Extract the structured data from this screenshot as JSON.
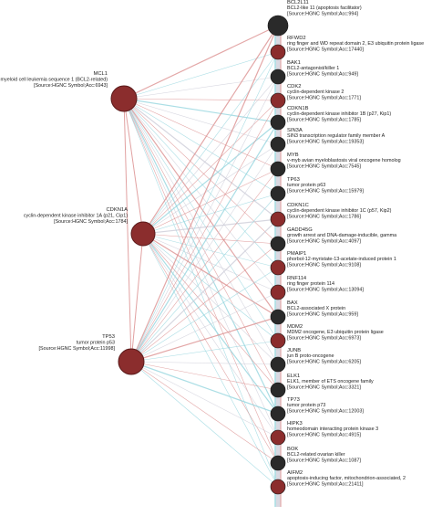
{
  "colors": {
    "red_node": "#8b2d2d",
    "dark_node": "#2a2a2a",
    "edge_red": "#d98a8a",
    "edge_blue": "#8fd3dc",
    "edge_gray": "#c9c9d6"
  },
  "hubs": [
    {
      "id": "mcl1",
      "lines": [
        "MCL1",
        "myeloid cell leukemia sequence 1 (BCL2-related)",
        "[Source:HGNC Symbol;Acc:6943]"
      ]
    },
    {
      "id": "cdkn1a",
      "lines": [
        "CDKN1A",
        "cyclin-dependent kinase inhibitor 1A (p21, Cip1)",
        "[Source:HGNC Symbol;Acc:1784]"
      ]
    },
    {
      "id": "tp53",
      "lines": [
        "TP53",
        "tumor protein p53",
        "[Source:HGNC Symbol;Acc:11998]"
      ]
    }
  ],
  "genes": [
    {
      "id": "bcl2l11",
      "color": "dark",
      "lines": [
        "BCL2L11",
        "BCL2-like 11 (apoptosis facilitator)",
        "[Source:HGNC Symbol;Acc:994]"
      ]
    },
    {
      "id": "rfwd2",
      "color": "red",
      "lines": [
        "RFWD2",
        "ring finger and WD repeat domain 2, E3 ubiquitin protein ligase",
        "[Source:HGNC Symbol;Acc:17440]"
      ]
    },
    {
      "id": "bak1",
      "color": "dark",
      "lines": [
        "BAK1",
        "BCL2-antagonist/killer 1",
        "[Source:HGNC Symbol;Acc:949]"
      ]
    },
    {
      "id": "cdk2",
      "color": "red",
      "lines": [
        "CDK2",
        "cyclin-dependent kinase 2",
        "[Source:HGNC Symbol;Acc:1771]"
      ]
    },
    {
      "id": "cdkn1b",
      "color": "dark",
      "lines": [
        "CDKN1B",
        "cyclin-dependent kinase inhibitor 1B (p27, Kip1)",
        "[Source:HGNC Symbol;Acc:1785]"
      ]
    },
    {
      "id": "sin3a",
      "color": "dark",
      "lines": [
        "SIN3A",
        "SIN3 transcription regulator family member A",
        "[Source:HGNC Symbol;Acc:19353]"
      ]
    },
    {
      "id": "myb",
      "color": "dark",
      "lines": [
        "MYB",
        "v-myb avian myeloblastosis viral oncogene homolog",
        "[Source:HGNC Symbol;Acc:7545]"
      ]
    },
    {
      "id": "tp63",
      "color": "dark",
      "lines": [
        "TP63",
        "tumor protein p63",
        "[Source:HGNC Symbol;Acc:15979]"
      ]
    },
    {
      "id": "cdkn1c",
      "color": "red",
      "lines": [
        "CDKN1C",
        "cyclin-dependent kinase inhibitor 1C (p57, Kip2)",
        "[Source:HGNC Symbol;Acc:1786]"
      ]
    },
    {
      "id": "gadd45g",
      "color": "dark",
      "lines": [
        "GADD45G",
        "growth arrest and DNA-damage-inducible, gamma",
        "[Source:HGNC Symbol;Acc:4097]"
      ]
    },
    {
      "id": "pmaip1",
      "color": "red",
      "lines": [
        "PMAIP1",
        "phorbol-12-myristate-13-acetate-induced protein 1",
        "[Source:HGNC Symbol;Acc:9108]"
      ]
    },
    {
      "id": "rnf114",
      "color": "red",
      "lines": [
        "RNF114",
        "ring finger protein 114",
        "[Source:HGNC Symbol;Acc:13094]"
      ]
    },
    {
      "id": "bax",
      "color": "dark",
      "lines": [
        "BAX",
        "BCL2-associated X protein",
        "[Source:HGNC Symbol;Acc:959]"
      ]
    },
    {
      "id": "mdm2",
      "color": "red",
      "lines": [
        "MDM2",
        "MDM2 oncogene, E3 ubiquitin protein ligase",
        "[Source:HGNC Symbol;Acc:6973]"
      ]
    },
    {
      "id": "junb",
      "color": "dark",
      "lines": [
        "JUNB",
        "jun B proto-oncogene",
        "[Source:HGNC Symbol;Acc:6205]"
      ]
    },
    {
      "id": "elk1",
      "color": "dark",
      "lines": [
        "ELK1",
        "ELK1, member of ETS oncogene family",
        "[Source:HGNC Symbol;Acc:3321]"
      ]
    },
    {
      "id": "tp73",
      "color": "dark",
      "lines": [
        "TP73",
        "tumor protein p73",
        "[Source:HGNC Symbol;Acc:12003]"
      ]
    },
    {
      "id": "hipk3",
      "color": "red",
      "lines": [
        "HIPK3",
        "homeodomain interacting protein kinase 3",
        "[Source:HGNC Symbol;Acc:4915]"
      ]
    },
    {
      "id": "bok",
      "color": "dark",
      "lines": [
        "BOK",
        "BCL2-related ovarian killer",
        "[Source:HGNC Symbol;Acc:1087]"
      ]
    },
    {
      "id": "aifm2",
      "color": "red",
      "lines": [
        "AIFM2",
        "apoptosis-inducing factor, mitochondrion-associated, 2",
        "[Source:HGNC Symbol;Acc:21411]"
      ]
    }
  ]
}
